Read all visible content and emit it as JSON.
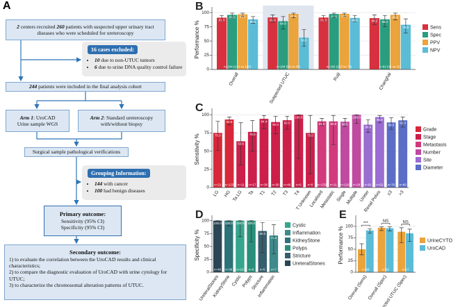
{
  "flowchart": {
    "panel": "A",
    "recruit": [
      "2",
      " centers recruited ",
      "260",
      " patients with suspected upper urinary tract diseases who were scheduled for ureteroscopy"
    ],
    "excluded": {
      "title": "16 cases excluded:",
      "items": [
        [
          "10",
          " due to non-UTUC tumors"
        ],
        [
          "6",
          " due to urine DNA quality control failure"
        ]
      ]
    },
    "cohort": [
      "244",
      " patients were included in the final analysis cohort"
    ],
    "arm1": {
      "title": [
        "Arm 1",
        ": UroCAD"
      ],
      "detail": "Urine sample WGS"
    },
    "arm2": {
      "title": [
        "Arm 2",
        ": Standard ureteroscopy"
      ],
      "detail": "with/without biopsy"
    },
    "verification": "Surgical sample pathological verifications",
    "grouping": {
      "title": "Grouping Information:",
      "items": [
        [
          "144",
          " with cancer"
        ],
        [
          "100",
          " had benign diseases"
        ]
      ]
    },
    "primary": {
      "title": "Primary outcome:",
      "items": [
        "Sensitivity (95% CI)",
        "Specificity (95% CI)"
      ]
    },
    "secondary": {
      "title": "Secondary outcome:",
      "items": [
        "1)  to evaluate the correlation between the UroCAD results and clinical characteristics;",
        "2)  to compare the diagnostic evaluation of UroCAD with urine cytology for UTUC;",
        "3)  to characterize the chromosomal alteration patterns of UTUC."
      ]
    }
  },
  "chart_data": [
    {
      "type": "bar",
      "panel": "B",
      "y_label": "Performance %",
      "categories": [
        "Overall",
        "Suspected UTUC",
        "Ruiji",
        "Changhai"
      ],
      "highlighted_categories": [
        "Suspected UTUC"
      ],
      "n_labels": [
        "n=244 (144 vs 100)",
        "n=104 (58 vs 46)",
        "n=182 (103 vs 79)",
        "n=62 (41 vs 21)"
      ],
      "series": [
        {
          "name": "Sens",
          "color": "#d7303f",
          "values": [
            91.0,
            91.4,
            91.3,
            90.2
          ],
          "value_labels": [
            "91.0",
            "91.4",
            "91.3",
            "90.2"
          ],
          "ci_low": [
            85,
            83,
            85,
            79
          ],
          "ci_high": [
            95,
            96,
            95,
            96
          ]
        },
        {
          "name": "Spec",
          "color": "#2a9d7f",
          "values": [
            96.0,
            84.8,
            97.5,
            88.2
          ],
          "value_labels": [
            "96.0",
            "84.8",
            "97.5",
            "88.2"
          ],
          "ci_low": [
            90,
            71,
            91,
            75
          ],
          "ci_high": [
            99,
            93,
            99,
            95
          ]
        },
        {
          "name": "PPV",
          "color": "#eba33c",
          "values": [
            97.0,
            97.6,
            97.7,
            96.0
          ],
          "value_labels": [
            "97.0",
            "97.6",
            "97.7",
            "96.0"
          ],
          "ci_low": [
            93,
            91,
            93,
            87
          ],
          "ci_high": [
            99,
            99,
            99,
            99
          ]
        },
        {
          "name": "NPV",
          "color": "#5bbcd6",
          "values": [
            88.1,
            56.0,
            90.6,
            78.6
          ],
          "value_labels": [
            "88.1",
            "56.0",
            "90.6",
            "78.6"
          ],
          "ci_low": [
            81,
            41,
            84,
            64
          ],
          "ci_high": [
            93,
            70,
            95,
            89
          ]
        }
      ],
      "ylim": [
        0,
        105
      ],
      "yticks": [
        0,
        25,
        50,
        75,
        100
      ],
      "grid": true,
      "legend": "right"
    },
    {
      "type": "bar",
      "panel": "C",
      "y_label": "Sensitivity %",
      "categories": [
        "LG",
        "HG",
        "Ta LG",
        "Ta",
        "T1",
        "T2",
        "T3",
        "T4",
        "T Unknown",
        "Localised",
        "Metastatic",
        "Single",
        "Multiple",
        "Ureter",
        "Renal Pelvis",
        "≤3",
        ">3"
      ],
      "n_labels": [
        "n=21",
        "n=123",
        "n=11",
        "n=17",
        "n=36",
        "n=30",
        "n=40",
        "n=6",
        "n=8",
        "n=133",
        "n=11",
        "n=116",
        "n=28",
        "n=81",
        "n=62",
        "n=76",
        "n=66"
      ],
      "series": [
        {
          "name": "Grade",
          "color": "#d62839",
          "values": [
            75.0,
            93.5,
            null,
            null,
            null,
            null,
            null,
            null,
            null,
            null,
            null,
            null,
            null,
            null,
            null,
            null,
            null
          ],
          "value_labels": [
            "75.0",
            "93.5",
            null,
            null,
            null,
            null,
            null,
            null,
            null,
            null,
            null,
            null,
            null,
            null,
            null,
            null,
            null
          ],
          "ci_low": [
            51,
            86,
            null,
            null,
            null,
            null,
            null,
            null,
            null,
            null,
            null,
            null,
            null,
            null,
            null,
            null,
            null
          ],
          "ci_high": [
            91,
            97,
            null,
            null,
            null,
            null,
            null,
            null,
            null,
            null,
            null,
            null,
            null,
            null,
            null,
            null,
            null
          ]
        },
        {
          "name": "Stage",
          "color": "#cc1f4a",
          "values": [
            null,
            null,
            63.6,
            76.5,
            94.4,
            90.0,
            92.5,
            100.0,
            75.0,
            null,
            null,
            null,
            null,
            null,
            null,
            null,
            null
          ],
          "value_labels": [
            null,
            null,
            "63.6",
            "76.5",
            "94.4",
            "90.0",
            "92.5",
            "100.0",
            "75.0",
            null,
            null,
            null,
            null,
            null,
            null,
            null,
            null
          ],
          "ci_low": [
            null,
            null,
            31,
            50,
            81,
            74,
            80,
            40,
            19,
            null,
            null,
            null,
            null,
            null,
            null,
            null,
            null
          ],
          "ci_high": [
            null,
            null,
            89,
            92,
            99,
            98,
            98,
            100,
            99,
            null,
            null,
            null,
            null,
            null,
            null,
            null,
            null
          ]
        },
        {
          "name": "Metastasis",
          "color": "#d23a7c",
          "values": [
            null,
            null,
            null,
            null,
            null,
            null,
            null,
            null,
            null,
            91.0,
            90.9,
            null,
            null,
            null,
            null,
            null,
            null
          ],
          "value_labels": [
            null,
            null,
            null,
            null,
            null,
            null,
            null,
            null,
            null,
            "91.0",
            "90.9",
            null,
            null,
            null,
            null,
            null,
            null
          ],
          "ci_low": [
            null,
            null,
            null,
            null,
            null,
            null,
            null,
            null,
            null,
            85,
            59,
            null,
            null,
            null,
            null,
            null,
            null
          ],
          "ci_high": [
            null,
            null,
            null,
            null,
            null,
            null,
            null,
            null,
            null,
            95,
            99,
            null,
            null,
            null,
            null,
            null,
            null
          ]
        },
        {
          "name": "Number",
          "color": "#c04aa0",
          "values": [
            null,
            null,
            null,
            null,
            null,
            null,
            null,
            null,
            null,
            null,
            null,
            90.5,
            100.0,
            null,
            null,
            null,
            null
          ],
          "value_labels": [
            null,
            null,
            null,
            null,
            null,
            null,
            null,
            null,
            null,
            null,
            null,
            "90.5",
            "100.0",
            null,
            null,
            null,
            null
          ],
          "ci_low": [
            null,
            null,
            null,
            null,
            null,
            null,
            null,
            null,
            null,
            null,
            null,
            84,
            88,
            null,
            null,
            null,
            null
          ],
          "ci_high": [
            null,
            null,
            null,
            null,
            null,
            null,
            null,
            null,
            null,
            null,
            null,
            95,
            100,
            null,
            null,
            null,
            null
          ]
        },
        {
          "name": "Site",
          "color": "#9b6cd1",
          "values": [
            null,
            null,
            null,
            null,
            null,
            null,
            null,
            null,
            null,
            null,
            null,
            null,
            null,
            86.4,
            96.8,
            null,
            null
          ],
          "value_labels": [
            null,
            null,
            null,
            null,
            null,
            null,
            null,
            null,
            null,
            null,
            null,
            null,
            null,
            "86.4",
            "96.8",
            null,
            null
          ],
          "ci_low": [
            null,
            null,
            null,
            null,
            null,
            null,
            null,
            null,
            null,
            null,
            null,
            null,
            null,
            76,
            89,
            null,
            null
          ],
          "ci_high": [
            null,
            null,
            null,
            null,
            null,
            null,
            null,
            null,
            null,
            null,
            null,
            null,
            null,
            93,
            99,
            null,
            null
          ]
        },
        {
          "name": "Diameter",
          "color": "#5b6dc7",
          "values": [
            null,
            null,
            null,
            null,
            null,
            null,
            null,
            null,
            null,
            null,
            null,
            null,
            null,
            null,
            null,
            89.5,
            92.4
          ],
          "value_labels": [
            null,
            null,
            null,
            null,
            null,
            null,
            null,
            null,
            null,
            null,
            null,
            null,
            null,
            null,
            null,
            "89.5",
            "92.4"
          ],
          "ci_low": [
            null,
            null,
            null,
            null,
            null,
            null,
            null,
            null,
            null,
            null,
            null,
            null,
            null,
            null,
            null,
            80,
            83
          ],
          "ci_high": [
            null,
            null,
            null,
            null,
            null,
            null,
            null,
            null,
            null,
            null,
            null,
            null,
            null,
            null,
            null,
            96,
            97
          ]
        }
      ],
      "ylim": [
        0,
        105
      ],
      "yticks": [
        0,
        25,
        50,
        75,
        100
      ],
      "grid": true,
      "legend": "right"
    },
    {
      "type": "bar",
      "panel": "D",
      "y_label": "Specificity %",
      "categories": [
        "UreteralStones",
        "KidneyStone",
        "Cystic",
        "Polyps",
        "Stricture",
        "Inflammation"
      ],
      "n_labels": [
        "n=40",
        "n=36",
        "n=10",
        "n=6",
        "n=5",
        "n=7"
      ],
      "series": [
        {
          "name": "Cystic",
          "color": "#35a58d",
          "values": [
            null,
            null,
            100.0,
            null,
            null,
            null
          ],
          "value_labels": [
            null,
            null,
            "100.0",
            null,
            null,
            null
          ],
          "ci_low": [
            null,
            null,
            69,
            null,
            null,
            null
          ],
          "ci_high": [
            null,
            null,
            100,
            null,
            null,
            null
          ]
        },
        {
          "name": "Inflammation",
          "color": "#3f8a8a",
          "values": [
            null,
            null,
            null,
            null,
            null,
            71.4
          ],
          "value_labels": [
            null,
            null,
            null,
            null,
            null,
            "71.4"
          ],
          "ci_low": [
            null,
            null,
            null,
            null,
            null,
            36
          ],
          "ci_high": [
            null,
            null,
            null,
            null,
            null,
            92
          ]
        },
        {
          "name": "KidneyStone",
          "color": "#2b7378",
          "values": [
            null,
            100.0,
            null,
            null,
            null,
            null
          ],
          "value_labels": [
            null,
            "100.0",
            null,
            null,
            null,
            null
          ],
          "ci_low": [
            null,
            90,
            null,
            null,
            null,
            null
          ],
          "ci_high": [
            null,
            100,
            null,
            null,
            null,
            null
          ]
        },
        {
          "name": "Polyps",
          "color": "#2a8f7a",
          "values": [
            null,
            null,
            null,
            100.0,
            null,
            null
          ],
          "value_labels": [
            null,
            null,
            null,
            "100.0",
            null,
            null
          ],
          "ci_low": [
            null,
            null,
            null,
            59,
            null,
            null
          ],
          "ci_high": [
            null,
            null,
            null,
            100,
            null,
            null
          ]
        },
        {
          "name": "Stricture",
          "color": "#365e6e",
          "values": [
            null,
            null,
            null,
            null,
            80.0,
            null
          ],
          "value_labels": [
            null,
            null,
            null,
            null,
            "80.0",
            null
          ],
          "ci_low": [
            null,
            null,
            null,
            null,
            38,
            null
          ],
          "ci_high": [
            null,
            null,
            null,
            null,
            96,
            null
          ]
        },
        {
          "name": "UreteralStones",
          "color": "#2c4656",
          "values": [
            100.0,
            null,
            null,
            null,
            null,
            null
          ],
          "value_labels": [
            "100.0",
            null,
            null,
            null,
            null,
            null
          ],
          "ci_low": [
            91,
            null,
            null,
            null,
            null,
            null
          ],
          "ci_high": [
            100,
            null,
            null,
            null,
            null,
            null
          ]
        }
      ],
      "ylim": [
        0,
        105
      ],
      "yticks": [
        0,
        25,
        50,
        75,
        100
      ],
      "grid": true,
      "legend": "right"
    },
    {
      "type": "bar",
      "panel": "E",
      "y_label": "Performance %",
      "categories": [
        "Overall (Sens)",
        "Overall (Spec)",
        "Suspected UTUC (Spec)"
      ],
      "n_labels": [
        "n=68",
        "n=62",
        "n=17"
      ],
      "significance": [
        "***",
        "NS",
        "NS"
      ],
      "series": [
        {
          "name": "UrineCYTO",
          "color": "#eba33c",
          "values": [
            50.0,
            97.0,
            88.2
          ],
          "ci_low": [
            38,
            91,
            64
          ],
          "ci_high": [
            62,
            99,
            97
          ]
        },
        {
          "name": "UroCAD",
          "color": "#5bbcd6",
          "values": [
            91.2,
            96.0,
            84.8
          ],
          "ci_low": [
            85,
            90,
            67
          ],
          "ci_high": [
            95,
            99,
            94
          ]
        }
      ],
      "ylim": [
        0,
        118
      ],
      "yticks": [
        0,
        25,
        50,
        75,
        100
      ],
      "grid": true,
      "legend": "right"
    }
  ]
}
